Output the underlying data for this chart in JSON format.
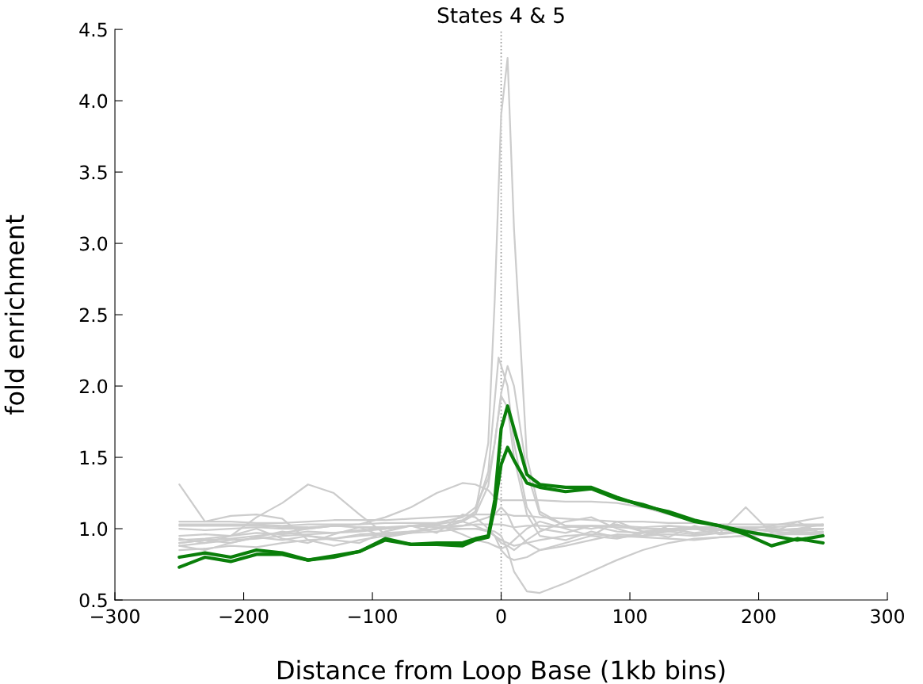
{
  "chart_data": {
    "type": "line",
    "title": "States 4 & 5",
    "xlabel": "Distance from Loop Base (1kb bins)",
    "ylabel": "fold enrichment",
    "x": [
      -250,
      -230,
      -210,
      -190,
      -170,
      -150,
      -130,
      -110,
      -90,
      -70,
      -50,
      -30,
      -20,
      -10,
      -5,
      0,
      5,
      10,
      20,
      30,
      50,
      70,
      90,
      110,
      130,
      150,
      170,
      190,
      210,
      230,
      250
    ],
    "xlim": [
      -300,
      300
    ],
    "xticks": [
      {
        "value": -300,
        "label": "−300"
      },
      {
        "value": -200,
        "label": "−200"
      },
      {
        "value": -100,
        "label": "−100"
      },
      0,
      100,
      200,
      300
    ],
    "ylim": [
      0.5,
      4.5
    ],
    "yticks": [
      {
        "value": 0.5,
        "label": "0.5"
      },
      {
        "value": 1.0,
        "label": "1.0"
      },
      {
        "value": 1.5,
        "label": "1.5"
      },
      {
        "value": 2.0,
        "label": "2.0"
      },
      {
        "value": 2.5,
        "label": "2.5"
      },
      {
        "value": 3.0,
        "label": "3.0"
      },
      {
        "value": 3.5,
        "label": "3.5"
      },
      {
        "value": 4.0,
        "label": "4.0"
      },
      {
        "value": 4.5,
        "label": "4.5"
      }
    ],
    "grid": false,
    "legend": false,
    "ref_lines": [
      {
        "axis": "x",
        "value": 0,
        "label": null,
        "color": "#999999",
        "line_style": "dotted"
      }
    ],
    "series": [
      {
        "color": "#cccccc",
        "values": [
          1.03,
          1.03,
          1.03,
          1.03,
          1.02,
          1.03,
          1.03,
          1.03,
          1.04,
          1.04,
          1.04,
          1.05,
          1.12,
          1.6,
          2.6,
          3.9,
          4.3,
          3.1,
          1.5,
          1.12,
          1.02,
          1.02,
          1.01,
          1.0,
          1.0,
          1.0,
          1.0,
          0.99,
          0.99,
          1.0,
          1.0
        ]
      },
      {
        "color": "#cccccc",
        "x": [
          -250,
          -230,
          -210,
          -190,
          -170,
          -150,
          -130,
          -110,
          -90,
          -70,
          -50,
          -30,
          -20,
          -10,
          -6,
          -2,
          5,
          10,
          20,
          30,
          50,
          70,
          90,
          110,
          130,
          150,
          170,
          190,
          210,
          230,
          250
        ],
        "values": [
          0.92,
          0.93,
          0.95,
          0.97,
          0.96,
          0.98,
          0.97,
          0.98,
          1.0,
          1.02,
          1.03,
          1.06,
          1.12,
          1.4,
          1.8,
          2.2,
          2.0,
          1.6,
          1.15,
          1.0,
          0.97,
          1.02,
          0.98,
          0.97,
          0.98,
          0.96,
          0.97,
          0.98,
          0.96,
          0.97,
          0.98
        ]
      },
      {
        "color": "#cccccc",
        "values": [
          0.88,
          0.9,
          0.92,
          0.93,
          0.95,
          0.96,
          0.97,
          0.99,
          1.0,
          1.02,
          1.04,
          1.08,
          1.15,
          1.35,
          1.6,
          1.95,
          2.14,
          2.0,
          1.4,
          1.1,
          1.02,
          1.0,
          1.03,
          0.98,
          1.0,
          0.97,
          0.99,
          1.01,
          0.98,
          1.0,
          1.03
        ]
      },
      {
        "color": "#cccccc",
        "values": [
          0.9,
          0.92,
          0.9,
          0.94,
          0.92,
          0.95,
          0.93,
          0.96,
          0.97,
          0.98,
          1.0,
          1.05,
          1.1,
          1.3,
          1.6,
          1.93,
          1.85,
          1.5,
          1.1,
          0.95,
          0.92,
          0.98,
          0.94,
          0.95,
          0.96,
          0.95,
          0.97,
          0.98,
          0.95,
          0.97,
          0.96
        ]
      },
      {
        "color": "#cccccc",
        "values": [
          1.31,
          1.05,
          1.09,
          1.1,
          1.07,
          0.92,
          0.88,
          0.92,
          0.95,
          0.98,
          1.0,
          1.02,
          1.05,
          1.08,
          1.1,
          1.15,
          1.1,
          1.0,
          0.9,
          0.85,
          0.88,
          0.92,
          0.96,
          0.95,
          0.98,
          1.0,
          0.99,
          1.0,
          1.02,
          1.05,
          1.08
        ]
      },
      {
        "color": "#cccccc",
        "values": [
          0.95,
          0.96,
          0.95,
          1.08,
          1.18,
          1.31,
          1.25,
          1.1,
          0.96,
          0.98,
          1.0,
          1.05,
          1.02,
          0.98,
          0.95,
          0.85,
          0.8,
          0.78,
          0.8,
          0.85,
          0.9,
          0.95,
          0.93,
          0.97,
          0.99,
          1.0,
          0.99,
          0.98,
          1.0,
          0.98,
          1.0
        ]
      },
      {
        "color": "#cccccc",
        "values": [
          0.9,
          0.92,
          0.93,
          0.95,
          0.97,
          1.0,
          1.02,
          1.03,
          1.08,
          1.15,
          1.25,
          1.32,
          1.31,
          1.27,
          1.22,
          1.2,
          1.2,
          1.2,
          1.2,
          1.2,
          1.19,
          1.19,
          1.18,
          1.15,
          1.1,
          1.05,
          1.02,
          1.0,
          0.98,
          0.97,
          0.97
        ]
      },
      {
        "color": "#cccccc",
        "values": [
          1.0,
          0.99,
          1.0,
          1.01,
          1.0,
          1.0,
          1.02,
          1.01,
          1.0,
          1.02,
          1.01,
          1.0,
          1.0,
          0.99,
          0.98,
          0.95,
          0.85,
          0.7,
          0.56,
          0.55,
          0.62,
          0.7,
          0.78,
          0.85,
          0.9,
          0.93,
          0.94,
          0.95,
          0.96,
          0.96,
          0.96
        ]
      },
      {
        "color": "#cccccc",
        "values": [
          1.05,
          1.05,
          1.05,
          1.04,
          1.04,
          1.05,
          1.06,
          1.06,
          1.06,
          1.07,
          1.08,
          1.09,
          1.1,
          1.1,
          1.1,
          1.1,
          1.1,
          1.09,
          1.09,
          1.08,
          1.07,
          1.06,
          1.05,
          1.05,
          1.04,
          1.04,
          1.03,
          1.03,
          1.03,
          1.03,
          1.03
        ]
      },
      {
        "color": "#cccccc",
        "values": [
          1.02,
          1.02,
          1.02,
          1.02,
          1.01,
          1.01,
          1.02,
          1.01,
          1.01,
          1.02,
          1.02,
          1.02,
          1.03,
          1.03,
          1.03,
          1.03,
          1.02,
          1.01,
          1.02,
          1.02,
          1.01,
          1.02,
          1.02,
          1.01,
          1.02,
          1.01,
          1.01,
          1.01,
          1.01,
          1.02,
          1.02
        ]
      },
      {
        "color": "#cccccc",
        "values": [
          0.93,
          0.9,
          0.95,
          1.0,
          0.93,
          0.9,
          0.96,
          1.01,
          0.94,
          0.97,
          1.03,
          0.96,
          0.92,
          0.9,
          0.88,
          0.86,
          0.88,
          0.92,
          1.0,
          1.05,
          1.0,
          0.95,
          1.05,
          0.98,
          0.94,
          1.02,
          0.97,
          1.15,
          0.97,
          1.05,
          0.96
        ]
      },
      {
        "color": "#cccccc",
        "values": [
          0.85,
          0.86,
          0.88,
          0.87,
          0.9,
          0.92,
          0.93,
          0.95,
          0.96,
          0.97,
          0.98,
          1.0,
          1.0,
          0.98,
          0.95,
          0.92,
          0.9,
          0.88,
          0.9,
          0.92,
          0.95,
          0.96,
          0.95,
          0.94,
          0.93,
          0.92,
          0.94,
          0.95,
          0.96,
          0.98,
          1.0
        ]
      },
      {
        "color": "#cccccc",
        "values": [
          0.88,
          0.85,
          0.9,
          0.94,
          0.98,
          0.95,
          0.92,
          0.9,
          0.98,
          1.02,
          0.97,
          1.1,
          1.08,
          1.0,
          0.95,
          0.9,
          0.88,
          0.85,
          0.92,
          0.98,
          1.05,
          1.08,
          1.0,
          0.95,
          1.02,
          1.0,
          0.96,
          0.98,
          1.0,
          0.99,
          1.0
        ]
      },
      {
        "color": "#0a7f0a",
        "values": [
          0.8,
          0.83,
          0.8,
          0.85,
          0.83,
          0.78,
          0.81,
          0.84,
          0.92,
          0.89,
          0.9,
          0.9,
          0.93,
          0.95,
          1.2,
          1.7,
          1.86,
          1.7,
          1.38,
          1.31,
          1.29,
          1.29,
          1.22,
          1.16,
          1.12,
          1.06,
          1.02,
          0.98,
          0.95,
          0.92,
          0.95
        ]
      },
      {
        "color": "#0a7f0a",
        "values": [
          0.73,
          0.8,
          0.77,
          0.82,
          0.82,
          0.78,
          0.8,
          0.84,
          0.93,
          0.89,
          0.89,
          0.88,
          0.92,
          0.94,
          1.15,
          1.45,
          1.57,
          1.48,
          1.32,
          1.29,
          1.26,
          1.28,
          1.21,
          1.17,
          1.11,
          1.05,
          1.02,
          0.96,
          0.88,
          0.93,
          0.9
        ]
      }
    ]
  }
}
